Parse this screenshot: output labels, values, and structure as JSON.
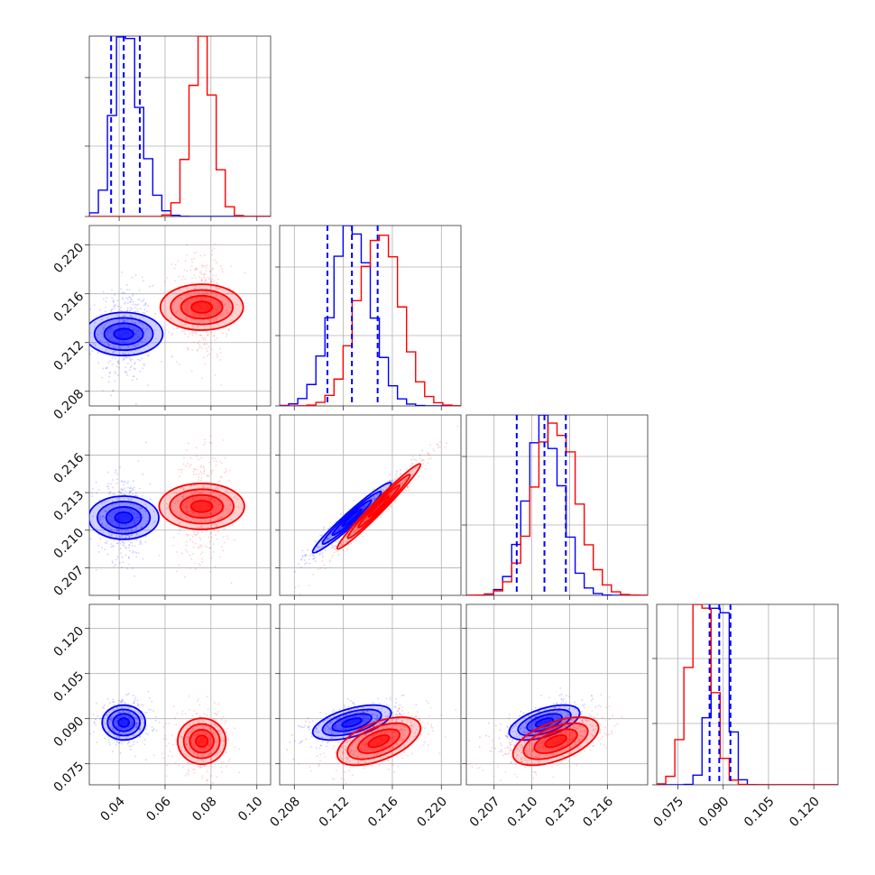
{
  "chart_data": {
    "type": "corner",
    "title": "",
    "parameters": [
      "",
      "",
      "",
      ""
    ],
    "colors": {
      "series_a": "#0000ff",
      "series_b": "#ff0000"
    },
    "grid": true,
    "axis_ranges": [
      [
        0.027,
        0.106
      ],
      [
        0.2068,
        0.2216
      ],
      [
        0.2048,
        0.2192
      ],
      [
        0.068,
        0.128
      ]
    ],
    "ticks": {
      "p0": [
        "0.04",
        "0.06",
        "0.08",
        "0.10"
      ],
      "p1": [
        "0.208",
        "0.212",
        "0.216",
        "0.220"
      ],
      "p2": [
        "0.207",
        "0.210",
        "0.213",
        "0.216"
      ],
      "p3": [
        "0.075",
        "0.090",
        "0.105",
        "0.120"
      ]
    },
    "series": [
      {
        "color": "#0000ff",
        "mean": [
          0.042,
          0.2127,
          0.211,
          0.0887
        ],
        "sd": [
          0.0047,
          0.0016,
          0.0014,
          0.0029
        ],
        "corr": [
          [
            1,
            0,
            0,
            0
          ],
          [
            0,
            1,
            0.97,
            0.55
          ],
          [
            0,
            0.97,
            1,
            0.55
          ],
          [
            0,
            0.55,
            0.55,
            1
          ]
        ],
        "quantiles": [
          [
            0.0365,
            0.042,
            0.049
          ],
          [
            0.2107,
            0.2127,
            0.2148
          ],
          [
            0.2088,
            0.211,
            0.2127
          ],
          [
            0.0855,
            0.0887,
            0.0924
          ]
        ]
      },
      {
        "color": "#ff0000",
        "mean": [
          0.076,
          0.2149,
          0.2119,
          0.0825
        ],
        "sd": [
          0.005,
          0.0017,
          0.0017,
          0.004
        ],
        "corr": [
          [
            1,
            0,
            0,
            0
          ],
          [
            0,
            1,
            0.98,
            0.55
          ],
          [
            0,
            0.98,
            1,
            0.55
          ],
          [
            0,
            0.55,
            0.55,
            1
          ]
        ]
      }
    ]
  }
}
